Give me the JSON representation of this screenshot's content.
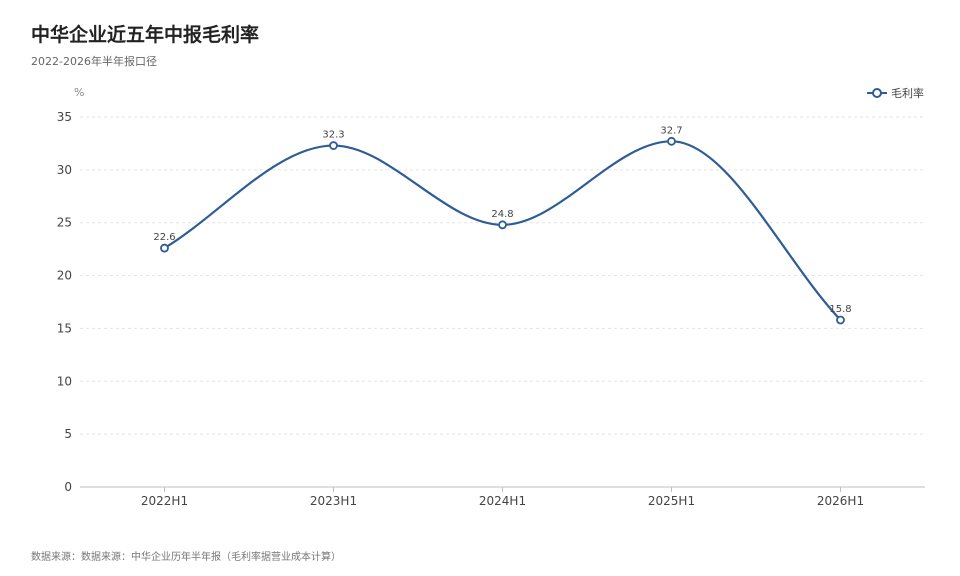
{
  "title": "中华企业近五年中报毛利率",
  "subtitle": "2022-2026年半年报口径",
  "source": "数据来源：数据来源：中华企业历年半年报（毛利率据营业成本计算）",
  "colors": {
    "line": "#2e5c94",
    "grid": "#e3e3e3",
    "axis": "#bfbfbf"
  },
  "chart_data": {
    "type": "line",
    "title": "中华企业近五年中报毛利率",
    "subtitle": "2022-2026年半年报口径",
    "ylabel": "%",
    "xlabel": "",
    "categories": [
      "2022H1",
      "2023H1",
      "2024H1",
      "2025H1",
      "2026H1"
    ],
    "series": [
      {
        "name": "毛利率",
        "values": [
          22.6,
          32.3,
          24.8,
          32.7,
          15.8
        ]
      }
    ],
    "ylim": [
      0,
      35
    ],
    "yticks": [
      0,
      5,
      10,
      15,
      20,
      25,
      30,
      35
    ],
    "grid": true,
    "smooth": true,
    "legend": "top-right",
    "data_labels": true
  }
}
